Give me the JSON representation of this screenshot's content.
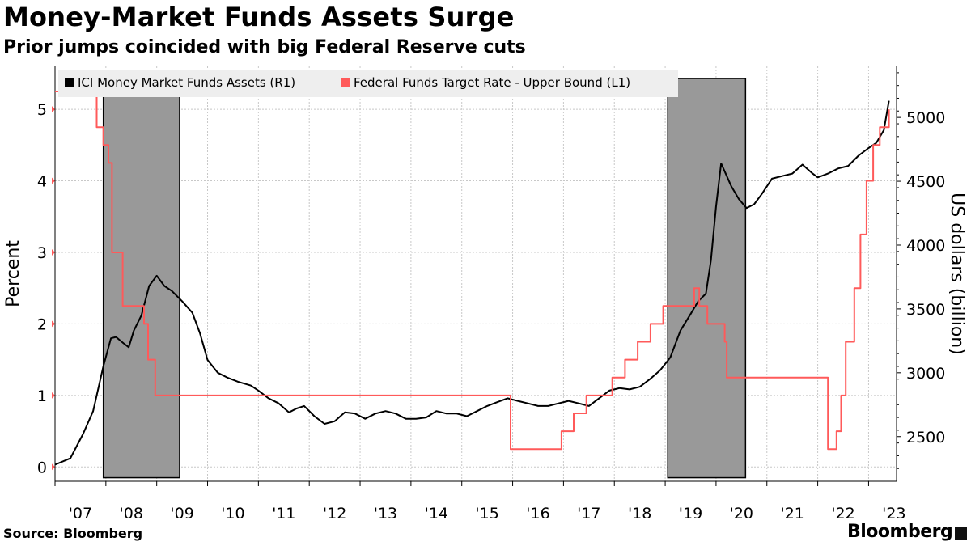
{
  "header": {
    "title": "Money-Market Funds Assets Surge",
    "subtitle": "Prior jumps coincided with big Federal Reserve cuts"
  },
  "footer": {
    "source": "Source: Bloomberg",
    "brand": "Bloomberg"
  },
  "colors": {
    "assets": "#000000",
    "rate": "#ff5a5a",
    "shade": "#999999",
    "grid": "#c8c8c8",
    "legend_bg": "#eeeeee"
  },
  "chart_data": {
    "type": "line",
    "title": "Money-Market Funds Assets Surge",
    "subtitle": "Prior jumps coincided with big Federal Reserve cuts",
    "xlabel": "",
    "ylabel_left": "Percent",
    "ylabel_right": "US dollars (billion)",
    "x_range": [
      2007.0,
      2023.55
    ],
    "x_tick_labels": [
      "'07",
      "'08",
      "'09",
      "'10",
      "'11",
      "'12",
      "'13",
      "'14",
      "'15",
      "'16",
      "'17",
      "'18",
      "'19",
      "'20",
      "'21",
      "'22",
      "'23"
    ],
    "ylim_left": [
      -0.2,
      5.6
    ],
    "ylim_right": [
      2150,
      5400
    ],
    "y_ticks_left": [
      0,
      1,
      2,
      3,
      4,
      5
    ],
    "y_ticks_right": [
      2500,
      3000,
      3500,
      4000,
      4500,
      5000
    ],
    "y_tick_labels_left": [
      "0",
      "1",
      "2",
      "3",
      "4",
      "5"
    ],
    "y_tick_labels_right": [
      "2500",
      "3000",
      "3500",
      "4000",
      "4500",
      "5000"
    ],
    "grid": true,
    "legend": {
      "placement": "top-left",
      "entries": [
        {
          "label": "ICI Money Market Funds Assets  (R1)",
          "color": "#000000"
        },
        {
          "label": "Federal Funds Target Rate - Upper Bound  (L1)",
          "color": "#ff5a5a"
        }
      ]
    },
    "shaded_periods": [
      {
        "start": 2007.95,
        "end": 2009.45
      },
      {
        "start": 2019.05,
        "end": 2020.58
      }
    ],
    "series": [
      {
        "name": "ICI Money Market Funds Assets  (R1)",
        "axis": "right",
        "x": [
          2007.0,
          2007.3,
          2007.55,
          2007.75,
          2007.95,
          2008.1,
          2008.2,
          2008.35,
          2008.45,
          2008.55,
          2008.7,
          2008.85,
          2009.0,
          2009.15,
          2009.3,
          2009.5,
          2009.7,
          2009.85,
          2010.0,
          2010.2,
          2010.4,
          2010.6,
          2010.85,
          2011.0,
          2011.2,
          2011.4,
          2011.6,
          2011.75,
          2011.9,
          2012.1,
          2012.3,
          2012.5,
          2012.7,
          2012.9,
          2013.1,
          2013.3,
          2013.5,
          2013.7,
          2013.9,
          2014.1,
          2014.3,
          2014.5,
          2014.7,
          2014.9,
          2015.1,
          2015.3,
          2015.5,
          2015.7,
          2015.9,
          2016.1,
          2016.3,
          2016.5,
          2016.7,
          2016.9,
          2017.1,
          2017.3,
          2017.5,
          2017.7,
          2017.9,
          2018.1,
          2018.3,
          2018.5,
          2018.7,
          2018.9,
          2019.1,
          2019.3,
          2019.5,
          2019.65,
          2019.8,
          2019.9,
          2020.0,
          2020.1,
          2020.2,
          2020.3,
          2020.45,
          2020.6,
          2020.75,
          2020.9,
          2021.1,
          2021.3,
          2021.5,
          2021.7,
          2021.9,
          2022.0,
          2022.2,
          2022.4,
          2022.6,
          2022.8,
          2023.0,
          2023.15,
          2023.3,
          2023.4
        ],
        "values": [
          2280,
          2330,
          2520,
          2700,
          3050,
          3270,
          3280,
          3230,
          3200,
          3330,
          3450,
          3680,
          3760,
          3680,
          3640,
          3560,
          3470,
          3310,
          3100,
          3000,
          2960,
          2930,
          2900,
          2860,
          2800,
          2760,
          2690,
          2720,
          2740,
          2660,
          2600,
          2620,
          2690,
          2680,
          2640,
          2680,
          2700,
          2680,
          2640,
          2640,
          2650,
          2700,
          2680,
          2680,
          2660,
          2700,
          2740,
          2770,
          2800,
          2780,
          2760,
          2740,
          2740,
          2760,
          2780,
          2760,
          2740,
          2800,
          2860,
          2880,
          2870,
          2890,
          2950,
          3020,
          3120,
          3330,
          3460,
          3560,
          3620,
          3880,
          4300,
          4640,
          4550,
          4460,
          4360,
          4290,
          4320,
          4400,
          4520,
          4540,
          4560,
          4630,
          4560,
          4530,
          4560,
          4600,
          4620,
          4700,
          4760,
          4800,
          4900,
          5130
        ]
      },
      {
        "name": "Federal Funds Target Rate - Upper Bound  (L1)",
        "axis": "left",
        "step": true,
        "x": [
          2007.0,
          2007.7,
          2007.82,
          2007.95,
          2008.05,
          2008.12,
          2008.25,
          2008.33,
          2008.75,
          2008.83,
          2008.97,
          2015.96,
          2016.96,
          2017.2,
          2017.45,
          2017.96,
          2018.21,
          2018.46,
          2018.71,
          2018.96,
          2019.57,
          2019.67,
          2019.83,
          2020.17,
          2020.21,
          2022.2,
          2022.37,
          2022.46,
          2022.55,
          2022.72,
          2022.84,
          2022.96,
          2023.09,
          2023.22,
          2023.4
        ],
        "values": [
          5.25,
          5.25,
          4.75,
          4.5,
          4.25,
          3.0,
          3.0,
          2.25,
          2.0,
          1.5,
          1.0,
          0.25,
          0.5,
          0.75,
          1.0,
          1.25,
          1.5,
          1.75,
          2.0,
          2.25,
          2.5,
          2.25,
          2.0,
          1.75,
          1.25,
          0.25,
          0.5,
          1.0,
          1.75,
          2.5,
          3.25,
          4.0,
          4.5,
          4.75,
          5.0
        ]
      }
    ]
  }
}
